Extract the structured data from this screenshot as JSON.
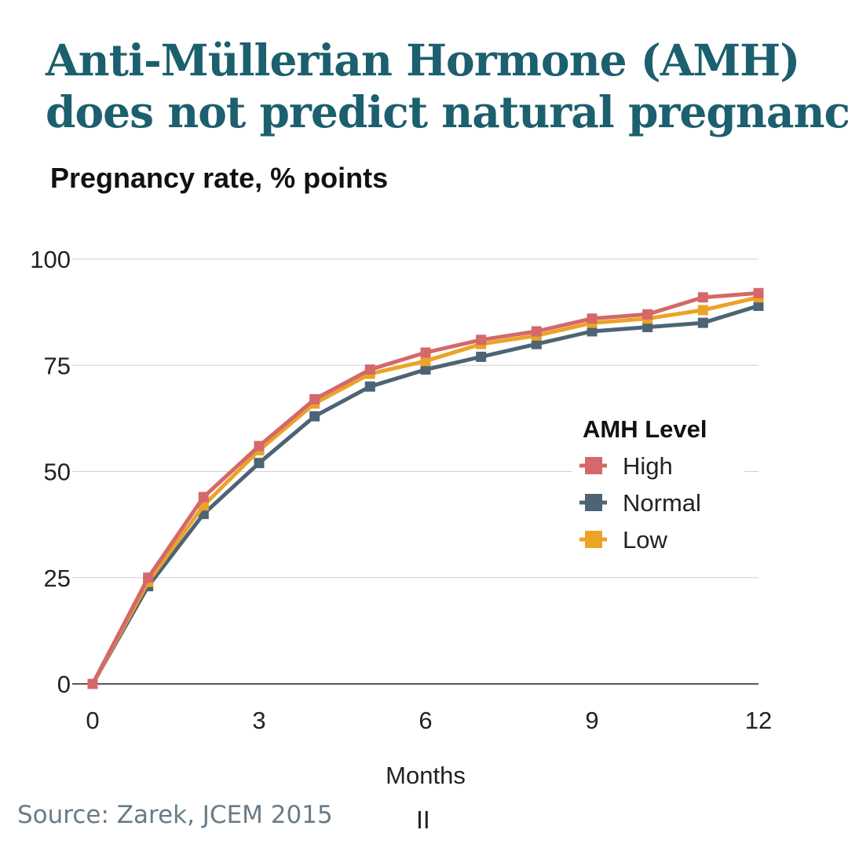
{
  "title_line1": "Anti-Müllerian Hormone (AMH)",
  "title_line2": "does not predict natural pregnancy.",
  "subtitle": "Pregnancy rate, % points",
  "source": "Source: Zarek, JCEM 2015",
  "logo_mark": "II",
  "chart_data": {
    "type": "line",
    "title": "Anti-Müllerian Hormone (AMH) does not predict natural pregnancy.",
    "ylabel": "Pregnancy rate, % points",
    "xlabel": "Months",
    "x": [
      0,
      1,
      2,
      3,
      4,
      5,
      6,
      7,
      8,
      9,
      10,
      11,
      12
    ],
    "xticks": [
      0,
      3,
      6,
      9,
      12
    ],
    "yticks": [
      0,
      25,
      50,
      75,
      100
    ],
    "xlim": [
      0,
      12
    ],
    "ylim": [
      0,
      100
    ],
    "grid": "horizontal",
    "legend_title": "AMH Level",
    "legend_position": "right",
    "series": [
      {
        "name": "High",
        "color": "#d4686a",
        "values": [
          0,
          25,
          44,
          56,
          67,
          74,
          78,
          81,
          83,
          86,
          87,
          91,
          92
        ]
      },
      {
        "name": "Normal",
        "color": "#4c6474",
        "values": [
          0,
          23,
          40,
          52,
          63,
          70,
          74,
          77,
          80,
          83,
          84,
          85,
          89
        ]
      },
      {
        "name": "Low",
        "color": "#eba328",
        "values": [
          0,
          24,
          42,
          55,
          66,
          73,
          76,
          80,
          82,
          85,
          86,
          88,
          91
        ]
      }
    ]
  }
}
